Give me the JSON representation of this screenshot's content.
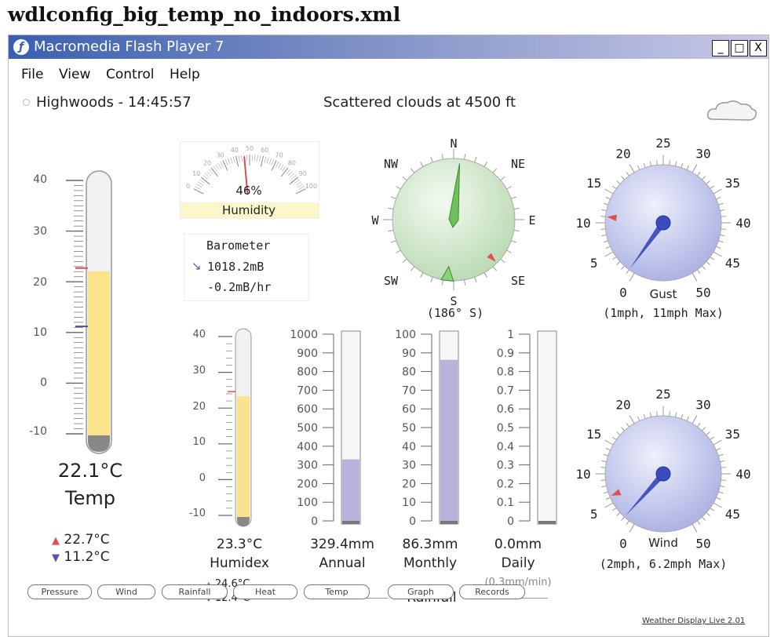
{
  "document_title": "wdlconfig_big_temp_no_indoors.xml",
  "window": {
    "title": "Macromedia Flash Player 7",
    "controls": [
      "_",
      "□",
      "X"
    ]
  },
  "menu": [
    "File",
    "View",
    "Control",
    "Help"
  ],
  "station": {
    "name_time": "Highwoods - 14:45:57",
    "conditions": "Scattered clouds at 4500 ft",
    "weather_icon": "cloud-icon"
  },
  "temperature": {
    "current": "22.1°C",
    "label": "Temp",
    "max": "22.7°C",
    "min": "11.2°C",
    "scale": [
      "40",
      "30",
      "20",
      "10",
      "0",
      "-10"
    ],
    "value": 22.1,
    "max_value": 22.7,
    "min_value": 11.2
  },
  "humidity": {
    "value_text": "46%",
    "label": "Humidity",
    "value": 46,
    "scale": [
      "0",
      "10",
      "20",
      "30",
      "40",
      "50",
      "60",
      "70",
      "80",
      "90",
      "100"
    ]
  },
  "barometer": {
    "label": "Barometer",
    "pressure": "1018.2mB",
    "trend": "-0.2mB/hr"
  },
  "wind_direction": {
    "labels": [
      "N",
      "NE",
      "E",
      "SE",
      "S",
      "SW",
      "W",
      "NW"
    ],
    "reading": "(186° S)",
    "degrees": 186
  },
  "gust": {
    "label": "Gust",
    "summary": "(1mph, 11mph Max)",
    "scale": [
      "0",
      "5",
      "10",
      "15",
      "20",
      "25",
      "30",
      "35",
      "40",
      "45",
      "50"
    ],
    "value": 1,
    "max": 11
  },
  "wind": {
    "label": "Wind",
    "summary": "(2mph, 6.2mph Max)",
    "scale": [
      "0",
      "5",
      "10",
      "15",
      "20",
      "25",
      "30",
      "35",
      "40",
      "45",
      "50"
    ],
    "value": 2,
    "max": 6.2
  },
  "humidex": {
    "current": "23.3°C",
    "label": "Humidex",
    "max": "24.6°C",
    "min": "12.4°C",
    "scale": [
      "40",
      "30",
      "20",
      "10",
      "0",
      "-10"
    ],
    "value": 23.3,
    "max_value": 24.6
  },
  "rainfall": {
    "title": "Rainfall",
    "rate": "(0.3mm/min)",
    "annual": {
      "value_text": "329.4mm",
      "label": "Annual",
      "value": 329.4,
      "scale": [
        "1000",
        "900",
        "800",
        "700",
        "600",
        "500",
        "400",
        "300",
        "200",
        "100",
        "0"
      ]
    },
    "monthly": {
      "value_text": "86.3mm",
      "label": "Monthly",
      "value": 86.3,
      "scale": [
        "100",
        "90",
        "80",
        "70",
        "60",
        "50",
        "40",
        "30",
        "20",
        "10",
        "0"
      ]
    },
    "daily": {
      "value_text": "0.0mm",
      "label": "Daily",
      "value": 0.0,
      "scale": [
        "1",
        "0.9",
        "0.8",
        "0.7",
        "0.6",
        "0.5",
        "0.4",
        "0.3",
        "0.2",
        "0.1",
        "0"
      ]
    }
  },
  "buttons": [
    "Pressure",
    "Wind",
    "Rainfall",
    "Heat",
    "Temp",
    "Graph",
    "Records"
  ],
  "footer_link": "Weather Display Live 2.01",
  "colors": {
    "title_bar": "#3a5fb0",
    "thermo_fill": "#fbe38b",
    "rain_fill": "#b8b3dd",
    "max_marker": "#e05050",
    "min_marker": "#5b52a8",
    "dial_face": "#c7cbee",
    "compass_face": "#d7ecd2",
    "needle": "#4655c0"
  }
}
